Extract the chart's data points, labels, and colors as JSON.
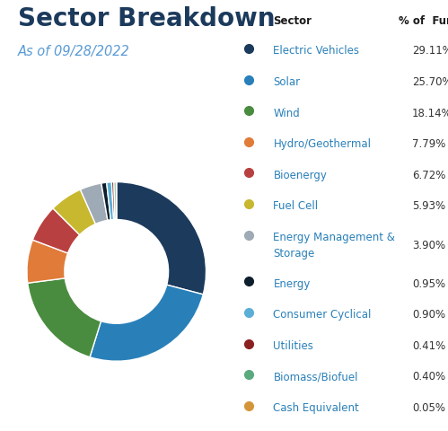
{
  "title": "Sector Breakdown",
  "subtitle": "As of 09/28/2022",
  "sectors": [
    {
      "name": "Electric Vehicles",
      "name2": null,
      "pct": 29.11,
      "pct_str": "29.11%",
      "color": "#1b3a5c"
    },
    {
      "name": "Solar",
      "name2": null,
      "pct": 25.7,
      "pct_str": "25.70%",
      "color": "#2980b9"
    },
    {
      "name": "Wind",
      "name2": null,
      "pct": 18.14,
      "pct_str": "18.14%",
      "color": "#4a8c3f"
    },
    {
      "name": "Hydro/Geothermal",
      "name2": null,
      "pct": 7.79,
      "pct_str": "7.79%",
      "color": "#e07b39"
    },
    {
      "name": "Bioenergy",
      "name2": null,
      "pct": 6.72,
      "pct_str": "6.72%",
      "color": "#b94040"
    },
    {
      "name": "Fuel Cell",
      "name2": null,
      "pct": 5.93,
      "pct_str": "5.93%",
      "color": "#c8b830"
    },
    {
      "name": "Energy Management &",
      "name2": "Storage",
      "pct": 3.9,
      "pct_str": "3.90%",
      "color": "#9eaab5"
    },
    {
      "name": "Energy",
      "name2": null,
      "pct": 0.95,
      "pct_str": "0.95%",
      "color": "#0d1f2d"
    },
    {
      "name": "Consumer Cyclical",
      "name2": null,
      "pct": 0.9,
      "pct_str": "0.90%",
      "color": "#5bafd6"
    },
    {
      "name": "Utilities",
      "name2": null,
      "pct": 0.41,
      "pct_str": "0.41%",
      "color": "#8b2020"
    },
    {
      "name": "Biomass/Biofuel",
      "name2": null,
      "pct": 0.4,
      "pct_str": "0.40%",
      "color": "#5aaa7e"
    },
    {
      "name": "Cash Equivalent",
      "name2": null,
      "pct": 0.05,
      "pct_str": "0.05%",
      "color": "#d4953a"
    }
  ],
  "legend_label_color": "#2980b9",
  "header_color": "#1a1a1a",
  "bg_color": "#ffffff",
  "title_color": "#1b3a5c",
  "subtitle_color": "#5b9bd5",
  "title_fontsize": 20,
  "subtitle_fontsize": 10.5,
  "legend_fontsize": 8.5
}
